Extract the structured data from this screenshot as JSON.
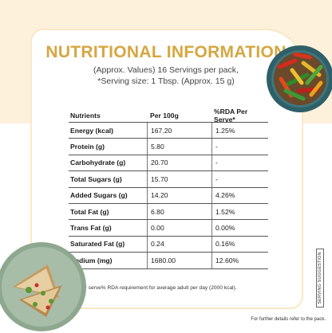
{
  "header": {
    "title": "NUTRITIONAL INFORMATION",
    "subtitle_line1": "(Approx. Values) 16 Servings per pack,",
    "subtitle_line2": "*Serving size: 1 Tbsp. (Approx. 15 g)"
  },
  "table": {
    "columns": [
      "Nutrients",
      "Per 100g",
      "%RDA Per Serve*"
    ],
    "rows": [
      {
        "nutrient": "Energy (kcal)",
        "per_100g": "167.20",
        "rda": "1.25%"
      },
      {
        "nutrient": "Protein (g)",
        "per_100g": "5.80",
        "rda": "-"
      },
      {
        "nutrient": "Carbohydrate (g)",
        "per_100g": "20.70",
        "rda": "-"
      },
      {
        "nutrient": "Total Sugars (g)",
        "per_100g": "15.70",
        "rda": "-"
      },
      {
        "nutrient": "Added Sugars (g)",
        "per_100g": "14.20",
        "rda": "4.26%"
      },
      {
        "nutrient": "Total Fat (g)",
        "per_100g": "6.80",
        "rda": "1.52%"
      },
      {
        "nutrient": "Trans Fat (g)",
        "per_100g": "0.00",
        "rda": "0.00%"
      },
      {
        "nutrient": "Saturated Fat (g)",
        "per_100g": "0.24",
        "rda": "0.16%"
      },
      {
        "nutrient": "Sodium (mg)",
        "per_100g": "1680.00",
        "rda": "12.60%"
      }
    ]
  },
  "note": "*Per serve% RDA requirement for average adult per day (2000 kcal).",
  "footer": "For further details refer to the pack.",
  "side_label": "SERVING SUGGESTION",
  "colors": {
    "title": "#d6a640",
    "cream": "#fdf1dc",
    "border": "#fbe8c5"
  },
  "images": {
    "top_right": "bowl-of-stir-fried-peppers",
    "bottom_left": "plate-of-sandwiches"
  }
}
